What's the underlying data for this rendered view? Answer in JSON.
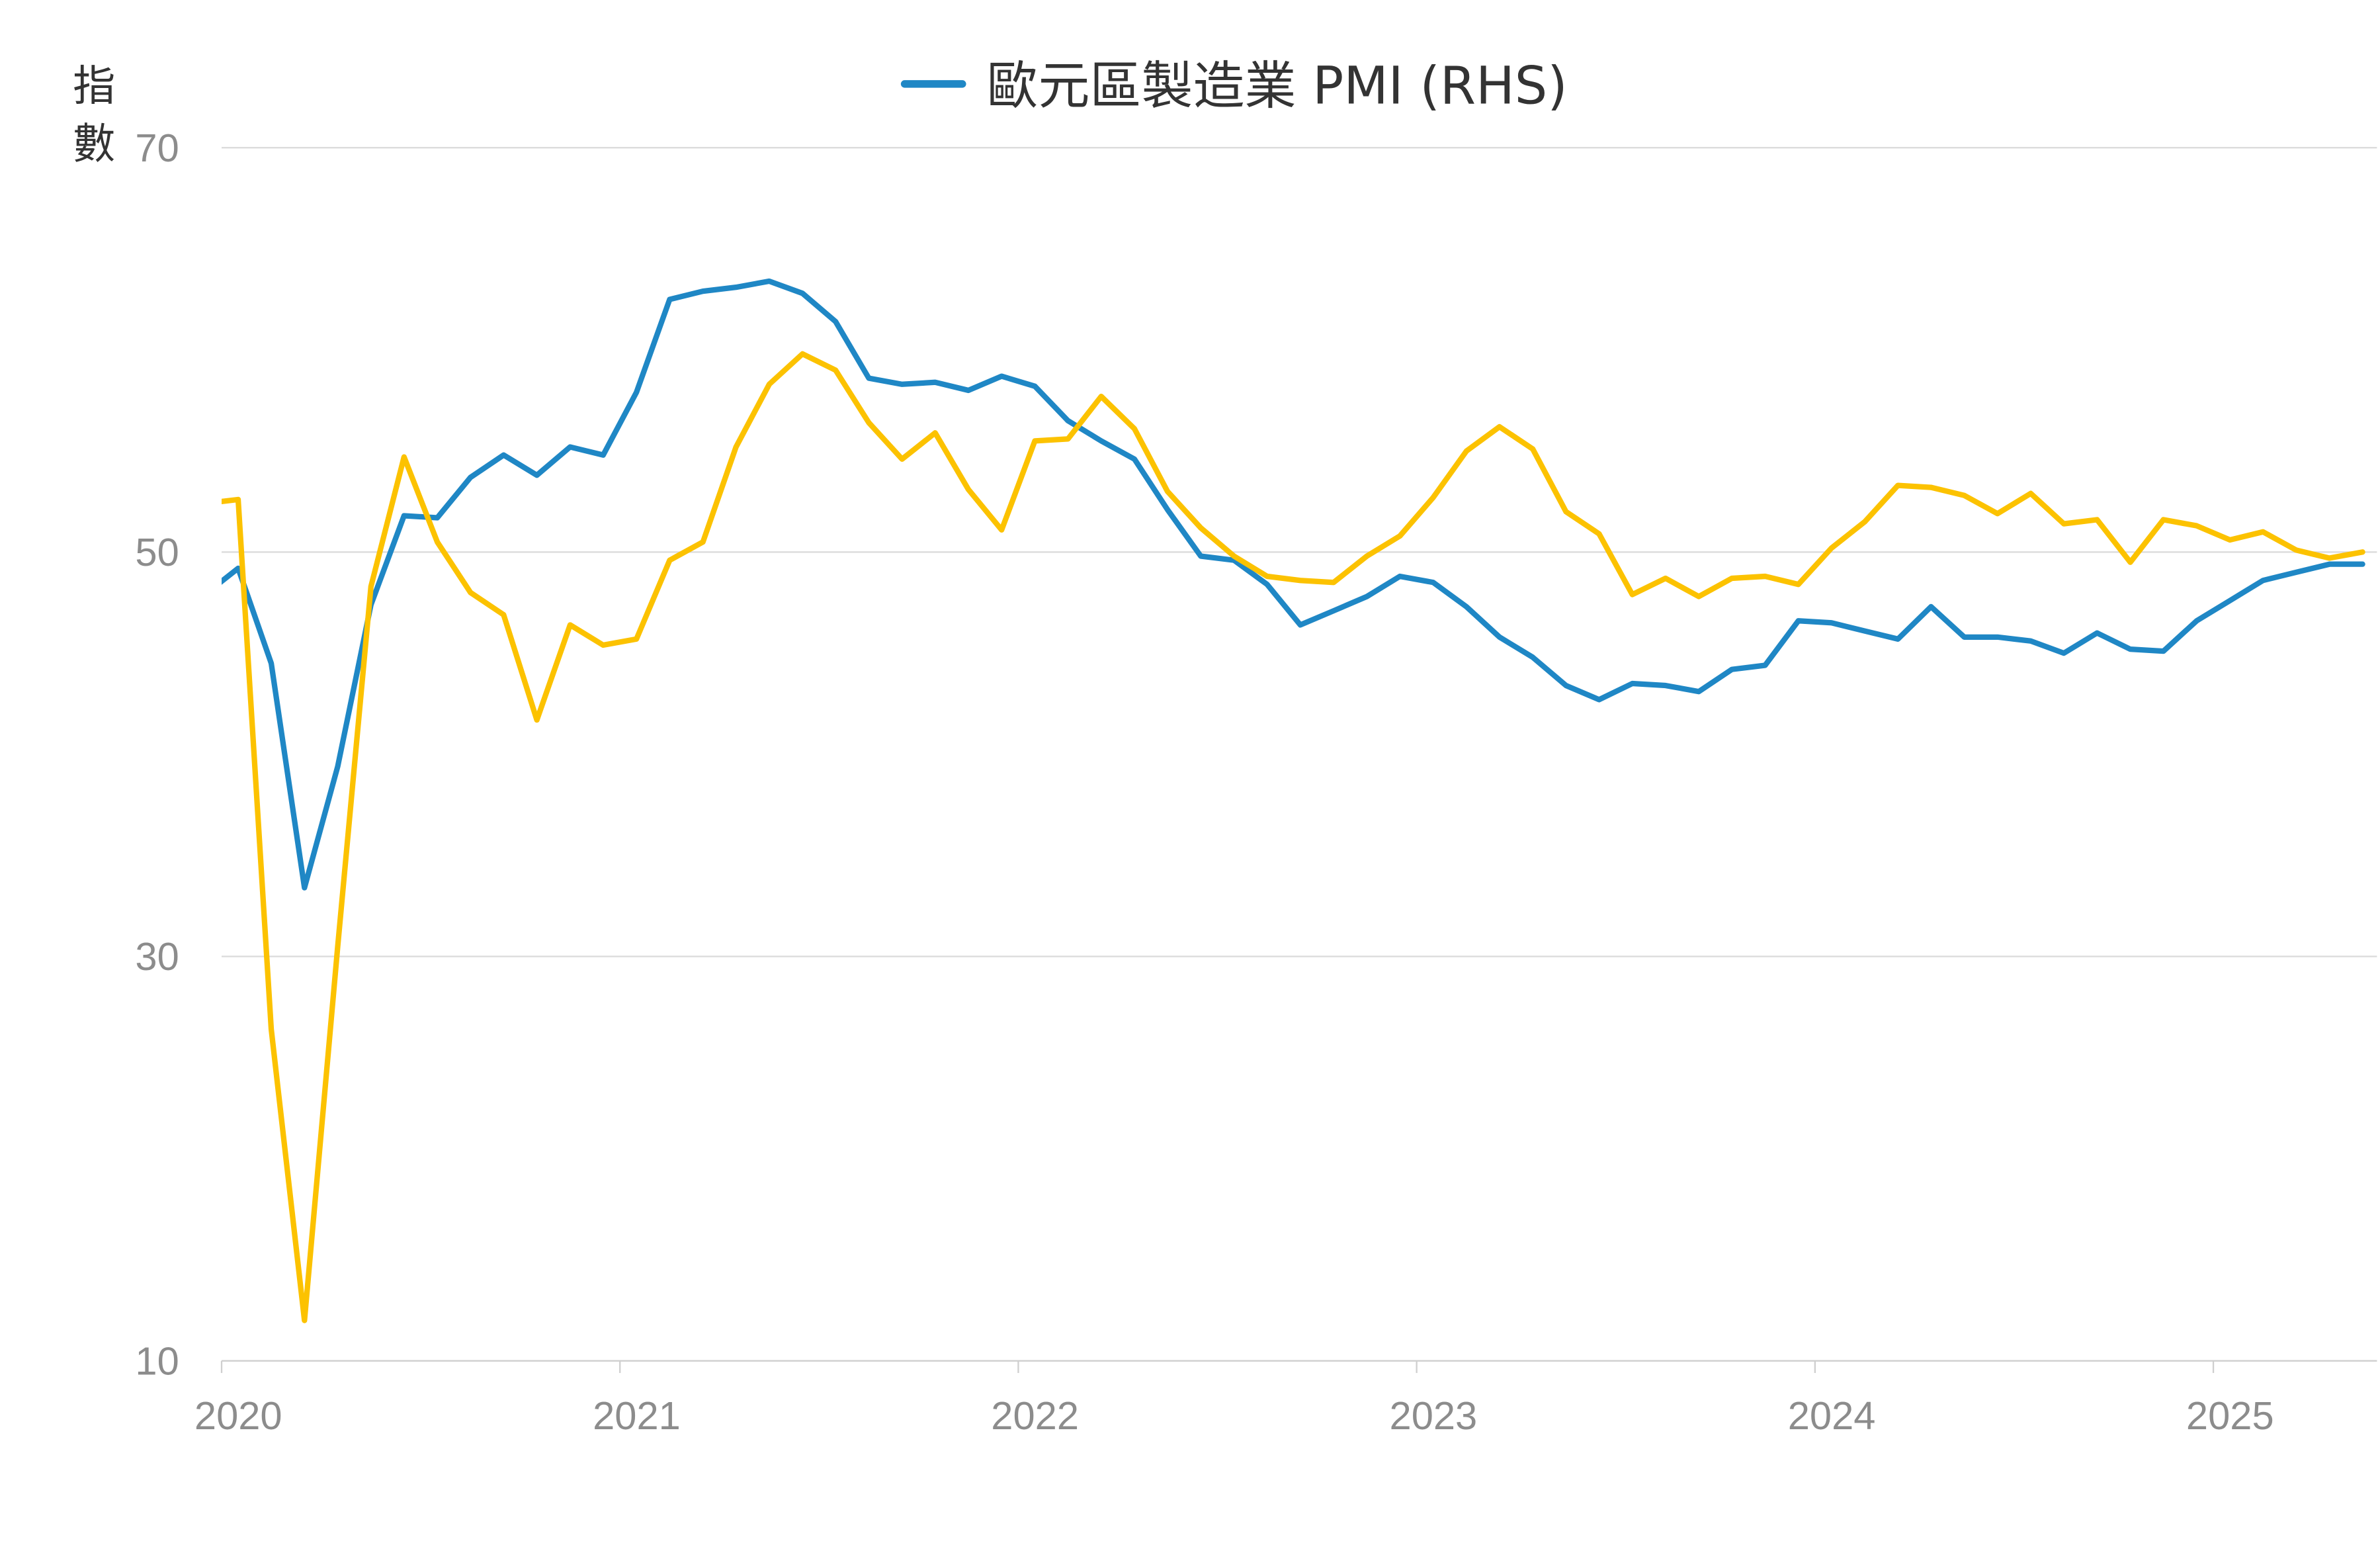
{
  "chart_data": {
    "type": "line",
    "title": "",
    "ylabel_chars": [
      "指",
      "數"
    ],
    "ylim": [
      10,
      70
    ],
    "yticks": [
      10,
      30,
      50,
      70
    ],
    "xticks": [
      "2020",
      "2021",
      "2022",
      "2023",
      "2024",
      "2025"
    ],
    "x_start": "2020-01",
    "grid": true,
    "legend_position": "top-center",
    "series": [
      {
        "name": "歐元區製造業 PMI (RHS)",
        "color": "#1f87c5",
        "in_legend": true,
        "values": [
          47.9,
          49.2,
          44.5,
          33.4,
          39.4,
          47.4,
          51.8,
          51.7,
          53.7,
          54.8,
          53.8,
          55.2,
          54.8,
          57.9,
          62.5,
          62.9,
          63.1,
          63.4,
          62.8,
          61.4,
          58.6,
          58.3,
          58.4,
          58.0,
          58.7,
          58.2,
          56.5,
          55.5,
          54.6,
          52.1,
          49.8,
          49.6,
          48.4,
          46.4,
          47.1,
          47.8,
          48.8,
          48.5,
          47.3,
          45.8,
          44.8,
          43.4,
          42.7,
          43.5,
          43.4,
          43.1,
          44.2,
          44.4,
          46.6,
          46.5,
          46.1,
          45.7,
          47.3,
          45.8,
          45.8,
          45.6,
          45.0,
          46.0,
          45.2,
          45.1,
          46.6,
          47.6,
          48.6,
          49.0,
          49.4,
          49.4
        ]
      },
      {
        "name": "",
        "color": "#fcc200",
        "in_legend": false,
        "values": [
          52.5,
          52.6,
          26.4,
          12.0,
          30.5,
          48.3,
          54.7,
          50.5,
          48.0,
          46.9,
          41.7,
          46.4,
          45.4,
          45.7,
          49.6,
          50.5,
          55.2,
          58.3,
          59.8,
          59.0,
          56.4,
          54.6,
          55.9,
          53.1,
          51.1,
          55.5,
          55.6,
          57.7,
          56.1,
          53.0,
          51.2,
          49.8,
          48.8,
          48.6,
          48.5,
          49.8,
          50.8,
          52.7,
          55.0,
          56.2,
          55.1,
          52.0,
          50.9,
          47.9,
          48.7,
          47.8,
          48.7,
          48.8,
          48.4,
          50.2,
          51.5,
          53.3,
          53.2,
          52.8,
          51.9,
          52.9,
          51.4,
          51.6,
          49.5,
          51.6,
          51.3,
          50.6,
          51.0,
          50.1,
          49.7,
          50.0
        ]
      }
    ]
  }
}
